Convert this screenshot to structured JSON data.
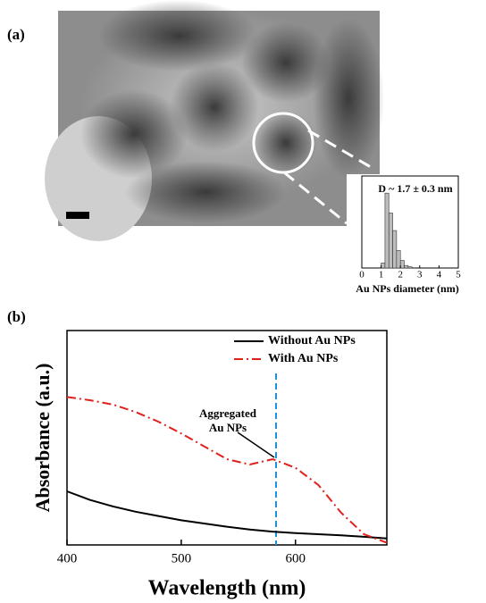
{
  "panels": [
    "(a)",
    "(b)"
  ],
  "chart_data": [
    {
      "type": "histogram",
      "title": "D ~ 1.7 ± 0.3 nm",
      "xlabel": "Au NPs diameter (nm)",
      "bins": [
        1.0,
        1.2,
        1.4,
        1.6,
        1.8,
        2.0,
        2.2,
        2.4,
        2.6
      ],
      "values": [
        2,
        30,
        22,
        15,
        7,
        3,
        1,
        0.5
      ],
      "color": "#bdbdbd",
      "xlim": [
        0,
        5
      ],
      "xticks": [
        0,
        1,
        2,
        3,
        4,
        5
      ],
      "ylim": [
        0,
        34
      ]
    },
    {
      "type": "line",
      "xlabel": "Wavelength (nm)",
      "ylabel": "Absorbance (a.u.)",
      "x": [
        400,
        420,
        440,
        460,
        480,
        500,
        520,
        540,
        560,
        580,
        600,
        620,
        640,
        660,
        680
      ],
      "series": [
        {
          "name": "Without Au NPs",
          "color": "#000000",
          "dash": "solid",
          "values": [
            0.25,
            0.21,
            0.18,
            0.155,
            0.135,
            0.115,
            0.1,
            0.085,
            0.072,
            0.062,
            0.055,
            0.05,
            0.045,
            0.038,
            0.03
          ]
        },
        {
          "name": "With Au NPs",
          "color": "#e0201b",
          "dash": "dashdot",
          "values": [
            0.69,
            0.675,
            0.655,
            0.62,
            0.575,
            0.52,
            0.46,
            0.4,
            0.375,
            0.4,
            0.36,
            0.28,
            0.15,
            0.05,
            0.01
          ]
        }
      ],
      "vline": 583,
      "vline_color": "#1f8fd6",
      "annotation": [
        "Aggregated",
        "Au NPs"
      ],
      "xlim": [
        400,
        680
      ],
      "xticks": [
        400,
        500,
        600
      ],
      "ylim": [
        0,
        1
      ],
      "legend": "upper right"
    }
  ]
}
